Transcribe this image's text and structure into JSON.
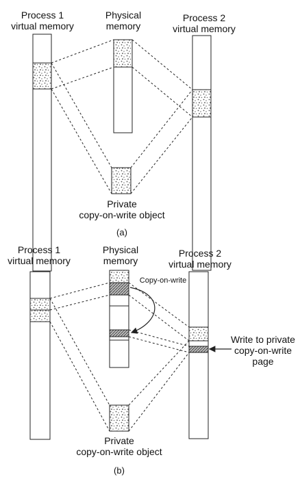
{
  "panel_a": {
    "process1": [
      "Process 1",
      "virtual memory"
    ],
    "physical": [
      "Physical",
      "memory"
    ],
    "process2": [
      "Process 2",
      "virtual memory"
    ],
    "private_obj": [
      "Private",
      "copy-on-write object"
    ],
    "caption": "(a)"
  },
  "panel_b": {
    "process1": [
      "Process 1",
      "virtual memory"
    ],
    "physical": [
      "Physical",
      "memory"
    ],
    "process2": [
      "Process 2",
      "virtual memory"
    ],
    "copy_on_write": "Copy-on-write",
    "write_note": [
      "Write to private",
      "copy-on-write",
      "page"
    ],
    "private_obj": [
      "Private",
      "copy-on-write object"
    ],
    "caption": "(b)"
  },
  "colors": {
    "stroke": "#222222",
    "shade": "#9a9a9a",
    "background": "#ffffff"
  }
}
